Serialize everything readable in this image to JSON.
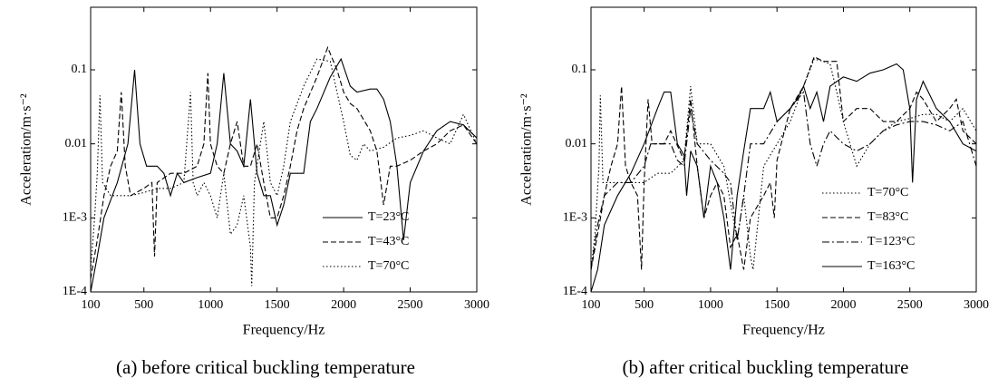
{
  "chart_data": [
    {
      "type": "line",
      "caption": "(a) before critical buckling temperature",
      "x_label": "Frequency/Hz",
      "y_label": "Acceleration/m·s⁻²",
      "xlim": [
        100,
        3000
      ],
      "xticks": [
        100,
        500,
        1000,
        1500,
        2000,
        2500,
        3000
      ],
      "ylim": [
        0.0001,
        0.7
      ],
      "yscale": "log",
      "yticks": [
        {
          "value": 0.0001,
          "label": "1E-4"
        },
        {
          "value": 0.001,
          "label": "1E-3"
        },
        0.01,
        0.1
      ],
      "legend": "lower right",
      "series": [
        {
          "name": "T=23°C",
          "color": "#000000",
          "dash": "solid",
          "x": [
            100,
            150,
            200,
            300,
            380,
            430,
            470,
            520,
            600,
            650,
            700,
            750,
            800,
            900,
            1000,
            1050,
            1100,
            1150,
            1200,
            1250,
            1300,
            1350,
            1400,
            1450,
            1500,
            1550,
            1600,
            1700,
            1750,
            1800,
            1900,
            1980,
            2050,
            2100,
            2200,
            2250,
            2300,
            2350,
            2400,
            2450,
            2500,
            2600,
            2700,
            2800,
            2900,
            3000
          ],
          "values": [
            0.0001,
            0.0003,
            0.001,
            0.003,
            0.01,
            0.1,
            0.01,
            0.005,
            0.005,
            0.004,
            0.002,
            0.004,
            0.003,
            0.0035,
            0.004,
            0.01,
            0.09,
            0.01,
            0.008,
            0.005,
            0.04,
            0.004,
            0.002,
            0.002,
            0.0008,
            0.0015,
            0.004,
            0.004,
            0.02,
            0.03,
            0.08,
            0.14,
            0.06,
            0.05,
            0.055,
            0.055,
            0.04,
            0.02,
            0.005,
            0.0005,
            0.003,
            0.008,
            0.015,
            0.02,
            0.018,
            0.012
          ]
        },
        {
          "name": "T=43°C",
          "color": "#000000",
          "dash": "dashed",
          "x": [
            100,
            150,
            200,
            250,
            300,
            330,
            360,
            400,
            500,
            560,
            580,
            600,
            700,
            800,
            900,
            950,
            980,
            1000,
            1050,
            1100,
            1150,
            1200,
            1250,
            1300,
            1350,
            1400,
            1450,
            1500,
            1550,
            1600,
            1650,
            1700,
            1800,
            1880,
            1950,
            2000,
            2050,
            2100,
            2200,
            2250,
            2300,
            2350,
            2400,
            2500,
            2600,
            2700,
            2800,
            2900,
            3000
          ],
          "values": [
            0.00015,
            0.0005,
            0.002,
            0.005,
            0.008,
            0.05,
            0.005,
            0.002,
            0.0025,
            0.003,
            0.0003,
            0.003,
            0.004,
            0.004,
            0.005,
            0.01,
            0.09,
            0.01,
            0.005,
            0.004,
            0.01,
            0.02,
            0.005,
            0.005,
            0.01,
            0.003,
            0.001,
            0.001,
            0.002,
            0.005,
            0.015,
            0.03,
            0.08,
            0.2,
            0.1,
            0.05,
            0.035,
            0.03,
            0.015,
            0.008,
            0.0015,
            0.005,
            0.005,
            0.006,
            0.008,
            0.01,
            0.015,
            0.018,
            0.01
          ]
        },
        {
          "name": "T=70°C",
          "color": "#000000",
          "dash": "dotted",
          "x": [
            100,
            130,
            150,
            170,
            190,
            250,
            300,
            400,
            500,
            600,
            700,
            800,
            850,
            870,
            900,
            950,
            1000,
            1050,
            1100,
            1150,
            1200,
            1250,
            1300,
            1310,
            1330,
            1400,
            1450,
            1500,
            1550,
            1600,
            1700,
            1800,
            1900,
            1950,
            2000,
            2050,
            2100,
            2150,
            2200,
            2300,
            2400,
            2500,
            2600,
            2700,
            2800,
            2900,
            3000
          ],
          "values": [
            0.0002,
            0.001,
            0.004,
            0.045,
            0.003,
            0.002,
            0.002,
            0.002,
            0.0022,
            0.0025,
            0.0025,
            0.003,
            0.05,
            0.003,
            0.002,
            0.003,
            0.002,
            0.001,
            0.004,
            0.0006,
            0.0008,
            0.002,
            0.0004,
            0.00012,
            0.003,
            0.02,
            0.003,
            0.002,
            0.005,
            0.02,
            0.06,
            0.14,
            0.13,
            0.05,
            0.02,
            0.007,
            0.006,
            0.01,
            0.008,
            0.009,
            0.012,
            0.013,
            0.015,
            0.012,
            0.01,
            0.025,
            0.01
          ]
        }
      ]
    },
    {
      "type": "line",
      "caption": "(b) after critical buckling temperature",
      "x_label": "Frequency/Hz",
      "y_label": "Acceleration/m·s⁻²",
      "xlim": [
        100,
        3000
      ],
      "xticks": [
        100,
        500,
        1000,
        1500,
        2000,
        2500,
        3000
      ],
      "ylim": [
        0.0001,
        0.7
      ],
      "yscale": "log",
      "yticks": [
        {
          "value": 0.0001,
          "label": "1E-4"
        },
        {
          "value": 0.001,
          "label": "1E-3"
        },
        0.01,
        0.1
      ],
      "legend": "lower right",
      "series": [
        {
          "name": "T=70°C",
          "color": "#000000",
          "dash": "dotted",
          "x": [
            100,
            130,
            160,
            170,
            190,
            300,
            400,
            500,
            600,
            700,
            800,
            850,
            900,
            1000,
            1100,
            1200,
            1250,
            1300,
            1320,
            1400,
            1500,
            1600,
            1700,
            1780,
            1850,
            1900,
            1950,
            2000,
            2100,
            2200,
            2300,
            2400,
            2500,
            2600,
            2700,
            2800,
            2900,
            3000
          ],
          "values": [
            0.0002,
            0.0006,
            0.005,
            0.045,
            0.003,
            0.003,
            0.003,
            0.003,
            0.004,
            0.004,
            0.006,
            0.06,
            0.01,
            0.01,
            0.005,
            0.0005,
            0.002,
            0.0003,
            0.0002,
            0.005,
            0.01,
            0.02,
            0.06,
            0.14,
            0.13,
            0.12,
            0.05,
            0.02,
            0.005,
            0.01,
            0.015,
            0.02,
            0.022,
            0.025,
            0.025,
            0.02,
            0.03,
            0.015
          ]
        },
        {
          "name": "T=83°C",
          "color": "#000000",
          "dash": "dashed",
          "x": [
            100,
            150,
            200,
            250,
            300,
            330,
            360,
            400,
            450,
            480,
            500,
            530,
            560,
            650,
            700,
            800,
            850,
            900,
            950,
            1000,
            1050,
            1100,
            1150,
            1200,
            1250,
            1300,
            1400,
            1450,
            1480,
            1500,
            1600,
            1700,
            1780,
            1850,
            1950,
            2000,
            2100,
            2200,
            2300,
            2400,
            2500,
            2550,
            2600,
            2700,
            2800,
            2850,
            2900,
            3000
          ],
          "values": [
            0.0002,
            0.0006,
            0.002,
            0.005,
            0.01,
            0.06,
            0.005,
            0.003,
            0.002,
            0.0002,
            0.003,
            0.04,
            0.01,
            0.01,
            0.015,
            0.006,
            0.04,
            0.005,
            0.001,
            0.002,
            0.003,
            0.002,
            0.0004,
            0.0006,
            0.0002,
            0.001,
            0.002,
            0.003,
            0.001,
            0.006,
            0.03,
            0.06,
            0.15,
            0.13,
            0.13,
            0.02,
            0.03,
            0.03,
            0.02,
            0.02,
            0.03,
            0.05,
            0.04,
            0.02,
            0.03,
            0.04,
            0.015,
            0.01
          ]
        },
        {
          "name": "T=123°C",
          "color": "#000000",
          "dash": "dashdot",
          "x": [
            100,
            150,
            200,
            300,
            400,
            500,
            550,
            600,
            700,
            750,
            800,
            850,
            900,
            1000,
            1100,
            1150,
            1200,
            1250,
            1300,
            1400,
            1500,
            1600,
            1700,
            1750,
            1800,
            1850,
            1900,
            2000,
            2100,
            2200,
            2300,
            2400,
            2500,
            2600,
            2700,
            2800,
            2900,
            3000
          ],
          "values": [
            0.0002,
            0.0008,
            0.002,
            0.003,
            0.003,
            0.005,
            0.01,
            0.01,
            0.01,
            0.006,
            0.005,
            0.03,
            0.01,
            0.006,
            0.004,
            0.003,
            0.0005,
            0.002,
            0.01,
            0.01,
            0.02,
            0.03,
            0.05,
            0.01,
            0.005,
            0.01,
            0.015,
            0.01,
            0.008,
            0.01,
            0.015,
            0.018,
            0.02,
            0.02,
            0.018,
            0.015,
            0.02,
            0.005
          ]
        },
        {
          "name": "T=163°C",
          "color": "#000000",
          "dash": "solid",
          "x": [
            100,
            150,
            200,
            300,
            400,
            500,
            600,
            650,
            700,
            750,
            800,
            820,
            850,
            900,
            950,
            1000,
            1050,
            1100,
            1150,
            1200,
            1250,
            1300,
            1400,
            1450,
            1500,
            1600,
            1650,
            1700,
            1750,
            1800,
            1850,
            1900,
            2000,
            2100,
            2200,
            2300,
            2400,
            2450,
            2500,
            2520,
            2550,
            2600,
            2700,
            2800,
            2900,
            3000
          ],
          "values": [
            0.0001,
            0.0002,
            0.0008,
            0.002,
            0.004,
            0.01,
            0.03,
            0.05,
            0.05,
            0.01,
            0.007,
            0.002,
            0.008,
            0.005,
            0.001,
            0.005,
            0.003,
            0.001,
            0.0002,
            0.002,
            0.008,
            0.03,
            0.03,
            0.05,
            0.02,
            0.03,
            0.04,
            0.06,
            0.03,
            0.05,
            0.02,
            0.06,
            0.08,
            0.07,
            0.09,
            0.1,
            0.12,
            0.1,
            0.03,
            0.003,
            0.04,
            0.07,
            0.03,
            0.02,
            0.01,
            0.008
          ]
        }
      ]
    }
  ]
}
